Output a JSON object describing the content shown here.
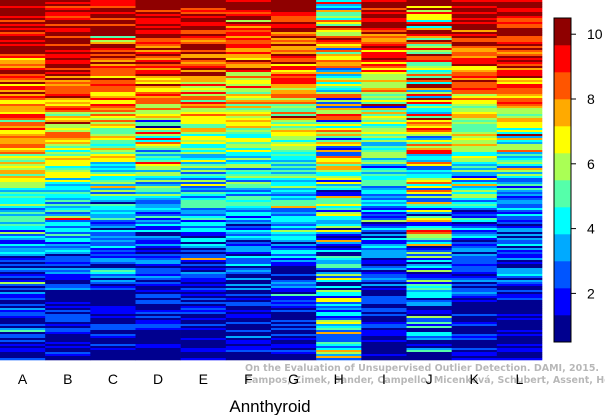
{
  "chart_data": {
    "type": "heatmap",
    "title": "",
    "xlabel": "Annthyroid",
    "ylabel": "",
    "columns": [
      "A",
      "B",
      "C",
      "D",
      "E",
      "F",
      "G",
      "H",
      "I",
      "J",
      "K",
      "L"
    ],
    "rank_profile_by_column": {
      "description_of_values": "approximate dominant rank value at relative row depth (0 = top, 1 = bottom) for each column",
      "depths": [
        0.0,
        0.2,
        0.4,
        0.6,
        0.8,
        1.0
      ],
      "values": {
        "A": [
          10,
          8.5,
          7.5,
          4,
          2,
          1.5
        ],
        "B": [
          10,
          9,
          6.5,
          4,
          2,
          1.5
        ],
        "C": [
          10,
          8.5,
          6,
          3.5,
          2,
          1
        ],
        "D": [
          10,
          8.5,
          5.5,
          3.5,
          2,
          1
        ],
        "E": [
          10,
          8,
          5.5,
          3.5,
          2,
          1
        ],
        "F": [
          10,
          7.5,
          5.5,
          3.5,
          2,
          1
        ],
        "G": [
          10,
          8,
          5.5,
          3.5,
          2,
          1
        ],
        "H": [
          6,
          5.5,
          5,
          4,
          3.5,
          6
        ],
        "I": [
          10,
          7.5,
          5,
          3,
          2,
          1
        ],
        "J": [
          8,
          7,
          6,
          5,
          3.5,
          2
        ],
        "K": [
          10,
          8,
          6,
          3.5,
          2,
          1
        ],
        "L": [
          10,
          8.5,
          5,
          3,
          2,
          1
        ]
      }
    },
    "colorbar": {
      "min": 1,
      "max": 10,
      "ticks": [
        "2",
        "4",
        "6",
        "8",
        "10"
      ],
      "colors": [
        "#00008f",
        "#0000ff",
        "#0055ff",
        "#00aaff",
        "#00ffff",
        "#55ffaa",
        "#aaff55",
        "#ffff00",
        "#ffaa00",
        "#ff5500",
        "#ff0000",
        "#8f0000"
      ]
    },
    "grid": false,
    "legend": "right"
  },
  "watermark": {
    "line1": "On the Evaluation of Unsupervised Outlier Detection. DAMI, 2015.",
    "line2": "Campos, Zimek, Sander, Campello, Micenková, Schubert, Assent, Houle"
  }
}
